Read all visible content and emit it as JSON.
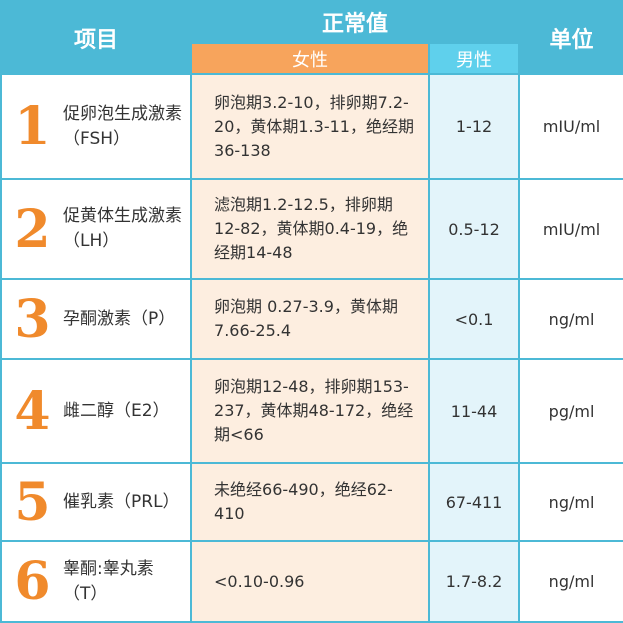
{
  "header": {
    "item": "项目",
    "normal": "正常值",
    "female": "女性",
    "male": "男性",
    "unit": "单位"
  },
  "rows": [
    {
      "number": 1,
      "name": "促卵泡生成激素（FSH）",
      "female": "卵泡期3.2-10，排卵期7.2-20，黄体期1.3-11，绝经期36-138",
      "male": "1-12",
      "unit": "mIU/ml"
    },
    {
      "number": 2,
      "name": "促黄体生成激素（LH）",
      "female": "滤泡期1.2-12.5，排卵期12-82，黄体期0.4-19，绝经期14-48",
      "male": "0.5-12",
      "unit": "mIU/ml"
    },
    {
      "number": 3,
      "name": "孕酮激素（P）",
      "female": "卵泡期 0.27-3.9，黄体期 7.66-25.4",
      "male": "<0.1",
      "unit": "ng/ml"
    },
    {
      "number": 4,
      "name": "雌二醇（E2）",
      "female": "卵泡期12-48，排卵期153-237，黄体期48-172，绝经期<66",
      "male": "11-44",
      "unit": "pg/ml"
    },
    {
      "number": 5,
      "name": "催乳素（PRL）",
      "female": "未绝经66-490，绝经62-410",
      "male": "67-411",
      "unit": "ng/ml"
    },
    {
      "number": 6,
      "name": "睾酮:睾丸素（T）",
      "female": "<0.10-0.96",
      "male": "1.7-8.2",
      "unit": "ng/ml"
    }
  ]
}
